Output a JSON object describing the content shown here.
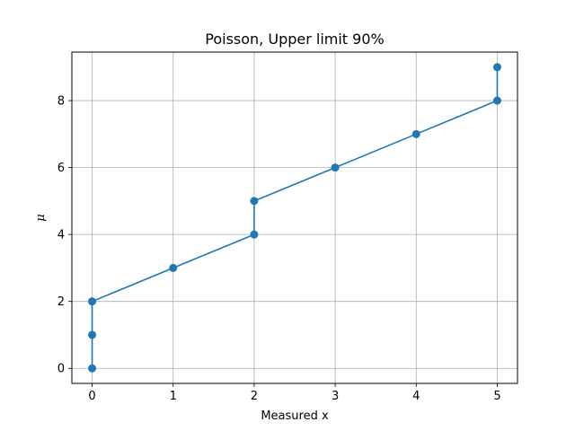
{
  "chart_data": {
    "type": "line",
    "title": "Poisson, Upper limit 90%",
    "xlabel": "Measured x",
    "ylabel": "μ",
    "xlim": [
      -0.25,
      5.25
    ],
    "ylim": [
      -0.45,
      9.45
    ],
    "xticks": [
      0,
      1,
      2,
      3,
      4,
      5
    ],
    "yticks": [
      0,
      2,
      4,
      6,
      8
    ],
    "xtick_labels": [
      "0",
      "1",
      "2",
      "3",
      "4",
      "5"
    ],
    "ytick_labels": [
      "0",
      "2",
      "4",
      "6",
      "8"
    ],
    "grid": true,
    "color": "#1f77b4",
    "series": [
      {
        "x": [
          0,
          0,
          0,
          1,
          2,
          2,
          3,
          4,
          5,
          5
        ],
        "y": [
          0,
          1,
          2,
          3,
          4,
          5,
          6,
          7,
          8,
          9
        ]
      }
    ]
  }
}
